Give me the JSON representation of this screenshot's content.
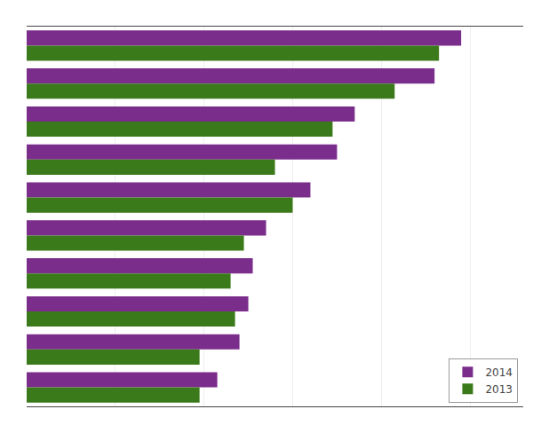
{
  "chart_data": {
    "type": "bar",
    "orientation": "horizontal",
    "categories": [
      null,
      null,
      null,
      null,
      null,
      null,
      null,
      null,
      null,
      null
    ],
    "series": [
      {
        "name": "2014",
        "color": "#7B2D8B",
        "values": [
          490,
          460,
          370,
          350,
          320,
          270,
          255,
          250,
          240,
          215
        ]
      },
      {
        "name": "2013",
        "color": "#3A7A1A",
        "values": [
          465,
          415,
          345,
          280,
          300,
          245,
          230,
          235,
          195,
          195
        ]
      }
    ],
    "xlim": [
      0,
      560
    ],
    "xticks": [
      0,
      100,
      200,
      300,
      400,
      500
    ],
    "grid": true,
    "legend": "lower right",
    "tick_labels": false
  }
}
